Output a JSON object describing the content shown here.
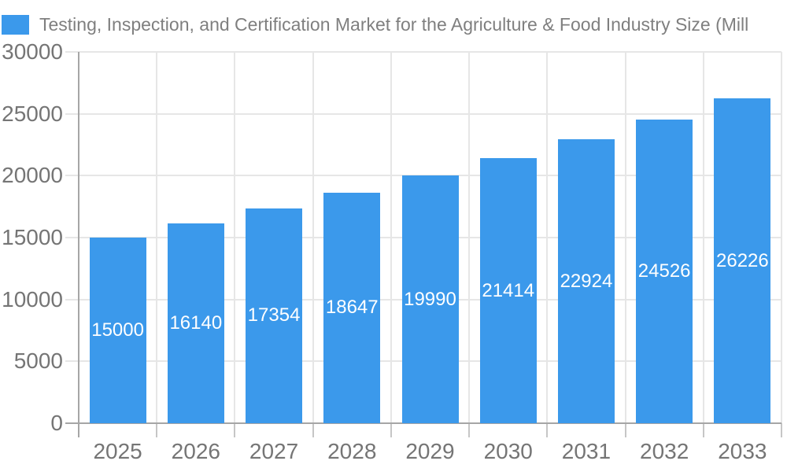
{
  "legend": {
    "label": "Testing, Inspection, and Certification Market for the Agriculture & Food Industry Size (Mill",
    "swatch_color": "#3b99eb"
  },
  "chart_data": {
    "type": "bar",
    "title": "Testing, Inspection, and Certification Market for the Agriculture & Food Industry Size (Mill",
    "categories": [
      "2025",
      "2026",
      "2027",
      "2028",
      "2029",
      "2030",
      "2031",
      "2032",
      "2033"
    ],
    "series": [
      {
        "name": "Testing, Inspection, and Certification Market for the Agriculture & Food Industry Size (Mill",
        "values": [
          15000,
          16140,
          17354,
          18647,
          19990,
          21414,
          22924,
          24526,
          26226
        ]
      }
    ],
    "xlabel": "",
    "ylabel": "",
    "ylim": [
      0,
      30000
    ],
    "yticks": [
      0,
      5000,
      10000,
      15000,
      20000,
      25000,
      30000
    ],
    "grid": true,
    "legend_position": "top-left",
    "value_labels_position": "inside-center"
  },
  "colors": {
    "bar": "#3b99eb",
    "axis_line": "#a6a6a6",
    "gridline": "#e6e6e6",
    "tick": "#c6c6c6",
    "axis_text": "#757575",
    "legend_text": "#7f7f7f",
    "value_label_text": "#ffffff",
    "background": "#ffffff"
  }
}
